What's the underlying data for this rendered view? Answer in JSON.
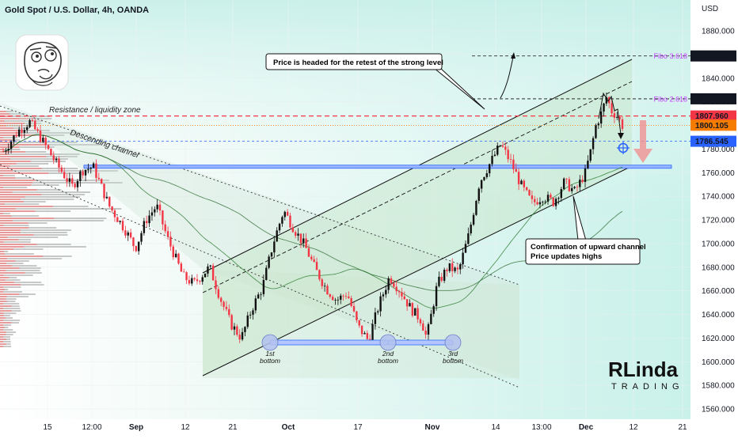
{
  "header": {
    "title": "Gold Spot / U.S. Dollar, 4h, OANDA",
    "currency": "USD"
  },
  "colors": {
    "up": "#111111",
    "down": "#f23645",
    "resistance": "#f23645",
    "blue_level": "#2962ff",
    "channel_fill": "#c8e6c9",
    "price_badge": "#2962ff",
    "orange_badge": "#f57c00",
    "fibo": "#c040ff",
    "arrow_down": "#f28b8b"
  },
  "chart_data": {
    "type": "candlestick",
    "title": "Gold Spot / U.S. Dollar, 4h, OANDA",
    "ylabel": "USD",
    "ylim": [
      1550,
      1900
    ],
    "y_ticks": [
      "1880.000",
      "1860.000",
      "1840.000",
      "1820.000",
      "1800.000",
      "1780.000",
      "1760.000",
      "1740.000",
      "1720.000",
      "1700.000",
      "1680.000",
      "1660.000",
      "1640.000",
      "1620.000",
      "1600.000",
      "1580.000",
      "1560.000"
    ],
    "x_ticks": [
      "15",
      "12:00",
      "Sep",
      "12",
      "21",
      "Oct",
      "17",
      "Nov",
      "14",
      "13:00",
      "Dec",
      "12",
      "21"
    ],
    "price_path": [
      {
        "t": 0,
        "p": 1778
      },
      {
        "t": 3,
        "p": 1796
      },
      {
        "t": 5,
        "p": 1803
      },
      {
        "t": 7,
        "p": 1790
      },
      {
        "t": 10,
        "p": 1768
      },
      {
        "t": 13,
        "p": 1748
      },
      {
        "t": 15,
        "p": 1762
      },
      {
        "t": 17,
        "p": 1765
      },
      {
        "t": 20,
        "p": 1732
      },
      {
        "t": 23,
        "p": 1712
      },
      {
        "t": 25,
        "p": 1696
      },
      {
        "t": 27,
        "p": 1720
      },
      {
        "t": 29,
        "p": 1732
      },
      {
        "t": 31,
        "p": 1705
      },
      {
        "t": 34,
        "p": 1672
      },
      {
        "t": 36,
        "p": 1666
      },
      {
        "t": 39,
        "p": 1680
      },
      {
        "t": 41,
        "p": 1654
      },
      {
        "t": 43,
        "p": 1632
      },
      {
        "t": 45,
        "p": 1620
      },
      {
        "t": 47,
        "p": 1645
      },
      {
        "t": 49,
        "p": 1663
      },
      {
        "t": 51,
        "p": 1700
      },
      {
        "t": 53,
        "p": 1728
      },
      {
        "t": 55,
        "p": 1712
      },
      {
        "t": 57,
        "p": 1698
      },
      {
        "t": 59,
        "p": 1678
      },
      {
        "t": 61,
        "p": 1662
      },
      {
        "t": 63,
        "p": 1652
      },
      {
        "t": 65,
        "p": 1658
      },
      {
        "t": 67,
        "p": 1630
      },
      {
        "t": 69,
        "p": 1618
      },
      {
        "t": 71,
        "p": 1648
      },
      {
        "t": 73,
        "p": 1672
      },
      {
        "t": 75,
        "p": 1660
      },
      {
        "t": 77,
        "p": 1645
      },
      {
        "t": 79,
        "p": 1635
      },
      {
        "t": 80,
        "p": 1620
      },
      {
        "t": 82,
        "p": 1665
      },
      {
        "t": 84,
        "p": 1680
      },
      {
        "t": 86,
        "p": 1676
      },
      {
        "t": 88,
        "p": 1708
      },
      {
        "t": 90,
        "p": 1752
      },
      {
        "t": 92,
        "p": 1768
      },
      {
        "t": 94,
        "p": 1784
      },
      {
        "t": 96,
        "p": 1768
      },
      {
        "t": 98,
        "p": 1748
      },
      {
        "t": 100,
        "p": 1734
      },
      {
        "t": 102,
        "p": 1740
      },
      {
        "t": 104,
        "p": 1735
      },
      {
        "t": 106,
        "p": 1752
      },
      {
        "t": 108,
        "p": 1744
      },
      {
        "t": 110,
        "p": 1760
      },
      {
        "t": 111,
        "p": 1778
      },
      {
        "t": 112,
        "p": 1800
      },
      {
        "t": 113,
        "p": 1810
      },
      {
        "t": 114,
        "p": 1824
      },
      {
        "t": 115,
        "p": 1812
      },
      {
        "t": 116,
        "p": 1808
      },
      {
        "t": 117,
        "p": 1800
      }
    ],
    "price_levels": [
      {
        "name": "fibo-3618",
        "value": 1858.756,
        "label": "1858.756",
        "fibo_label": "Fibo 3.618"
      },
      {
        "name": "fibo-2618",
        "value": 1822.476,
        "label": "1822.476",
        "fibo_label": "Fibo 2.618"
      },
      {
        "name": "resistance",
        "value": 1807.96,
        "label": "1807.960"
      },
      {
        "name": "close",
        "value": 1800.105,
        "label": "1800.105"
      },
      {
        "name": "target",
        "value": 1786.545,
        "label": "1786.545"
      }
    ],
    "horizontal_level": 1765,
    "annotations": [
      "Price is headed for the retest of the strong level",
      "Confirmation of upward channel",
      "Price updates highs",
      "Resistance / liquidity zone",
      "Descending channel"
    ],
    "bottoms": [
      {
        "label": "1st",
        "sub": "bottom",
        "value": 1622
      },
      {
        "label": "2nd",
        "sub": "bottom",
        "value": 1622
      },
      {
        "label": "3rd",
        "sub": "bottom",
        "value": 1622
      }
    ]
  },
  "brand": {
    "logo_letters": "RLinda",
    "logo_sub": "TRADING"
  }
}
